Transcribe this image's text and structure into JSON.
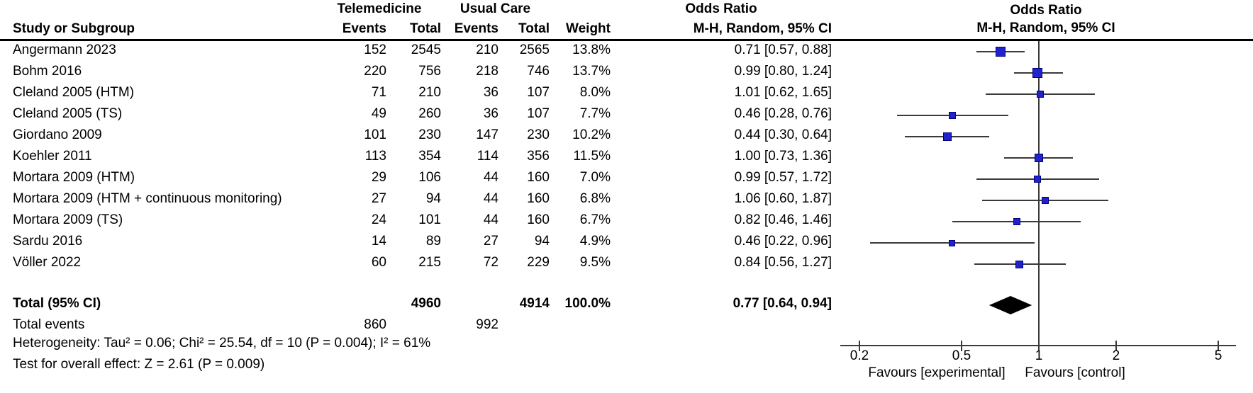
{
  "header": {
    "group1": "Telemedicine",
    "group2": "Usual Care",
    "or_label": "Odds Ratio",
    "method_label": "M-H, Random, 95% CI",
    "study": "Study or Subgroup",
    "events": "Events",
    "total": "Total",
    "weight": "Weight",
    "plot_or_label": "Odds Ratio",
    "plot_method_label": "M-H, Random, 95% CI"
  },
  "studies": [
    {
      "name": "Angermann 2023",
      "tele_events": "152",
      "tele_total": "2545",
      "uc_events": "210",
      "uc_total": "2565",
      "weight": "13.8%",
      "or_ci": "0.71 [0.57, 0.88]",
      "or": 0.71,
      "lo": 0.57,
      "hi": 0.88,
      "weight_value": 13.8
    },
    {
      "name": "Bohm 2016",
      "tele_events": "220",
      "tele_total": "756",
      "uc_events": "218",
      "uc_total": "746",
      "weight": "13.7%",
      "or_ci": "0.99 [0.80, 1.24]",
      "or": 0.99,
      "lo": 0.8,
      "hi": 1.24,
      "weight_value": 13.7
    },
    {
      "name": "Cleland 2005 (HTM)",
      "tele_events": "71",
      "tele_total": "210",
      "uc_events": "36",
      "uc_total": "107",
      "weight": "8.0%",
      "or_ci": "1.01 [0.62, 1.65]",
      "or": 1.01,
      "lo": 0.62,
      "hi": 1.65,
      "weight_value": 8.0
    },
    {
      "name": "Cleland 2005 (TS)",
      "tele_events": "49",
      "tele_total": "260",
      "uc_events": "36",
      "uc_total": "107",
      "weight": "7.7%",
      "or_ci": "0.46 [0.28, 0.76]",
      "or": 0.46,
      "lo": 0.28,
      "hi": 0.76,
      "weight_value": 7.7
    },
    {
      "name": "Giordano 2009",
      "tele_events": "101",
      "tele_total": "230",
      "uc_events": "147",
      "uc_total": "230",
      "weight": "10.2%",
      "or_ci": "0.44 [0.30, 0.64]",
      "or": 0.44,
      "lo": 0.3,
      "hi": 0.64,
      "weight_value": 10.2
    },
    {
      "name": "Koehler 2011",
      "tele_events": "113",
      "tele_total": "354",
      "uc_events": "114",
      "uc_total": "356",
      "weight": "11.5%",
      "or_ci": "1.00 [0.73, 1.36]",
      "or": 1.0,
      "lo": 0.73,
      "hi": 1.36,
      "weight_value": 11.5
    },
    {
      "name": "Mortara 2009 (HTM)",
      "tele_events": "29",
      "tele_total": "106",
      "uc_events": "44",
      "uc_total": "160",
      "weight": "7.0%",
      "or_ci": "0.99 [0.57, 1.72]",
      "or": 0.99,
      "lo": 0.57,
      "hi": 1.72,
      "weight_value": 7.0
    },
    {
      "name": "Mortara 2009 (HTM + continuous monitoring)",
      "tele_events": "27",
      "tele_total": "94",
      "uc_events": "44",
      "uc_total": "160",
      "weight": "6.8%",
      "or_ci": "1.06 [0.60, 1.87]",
      "or": 1.06,
      "lo": 0.6,
      "hi": 1.87,
      "weight_value": 6.8
    },
    {
      "name": "Mortara 2009 (TS)",
      "tele_events": "24",
      "tele_total": "101",
      "uc_events": "44",
      "uc_total": "160",
      "weight": "6.7%",
      "or_ci": "0.82 [0.46, 1.46]",
      "or": 0.82,
      "lo": 0.46,
      "hi": 1.46,
      "weight_value": 6.7
    },
    {
      "name": "Sardu 2016",
      "tele_events": "14",
      "tele_total": "89",
      "uc_events": "27",
      "uc_total": "94",
      "weight": "4.9%",
      "or_ci": "0.46 [0.22, 0.96]",
      "or": 0.46,
      "lo": 0.22,
      "hi": 0.96,
      "weight_value": 4.9
    },
    {
      "name": "Völler 2022",
      "tele_events": "60",
      "tele_total": "215",
      "uc_events": "72",
      "uc_total": "229",
      "weight": "9.5%",
      "or_ci": "0.84 [0.56, 1.27]",
      "or": 0.84,
      "lo": 0.56,
      "hi": 1.27,
      "weight_value": 9.5
    }
  ],
  "totals": {
    "label": "Total (95% CI)",
    "tele_total": "4960",
    "uc_total": "4914",
    "weight": "100.0%",
    "or_ci": "0.77 [0.64, 0.94]",
    "or": 0.77,
    "lo": 0.64,
    "hi": 0.94,
    "events_label": "Total events",
    "tele_events": "860",
    "uc_events": "992"
  },
  "footer": {
    "heterogeneity": "Heterogeneity: Tau² = 0.06; Chi² = 25.54, df = 10 (P = 0.004); I² = 61%",
    "overall_effect": "Test for overall effect: Z = 2.61 (P = 0.009)"
  },
  "axis": {
    "scale": "log",
    "ticks": [
      0.2,
      0.5,
      1,
      2,
      5
    ],
    "tick_labels": [
      "0.2",
      "0.5",
      "1",
      "2",
      "5"
    ],
    "favours_left": "Favours [experimental]",
    "favours_right": "Favours [control]"
  },
  "colors": {
    "square": "#2222CC",
    "square_border": "#000080",
    "diamond": "#000000",
    "line": "#3A3A3A",
    "text": "#000000"
  },
  "chart_data": {
    "type": "forest",
    "effect_measure": "Odds Ratio, M-H, Random, 95% CI",
    "x_axis": {
      "scale": "log",
      "ticks": [
        0.2,
        0.5,
        1,
        2,
        5
      ],
      "left_label": "Favours [experimental]",
      "right_label": "Favours [control]"
    },
    "categories": [
      "Angermann 2023",
      "Bohm 2016",
      "Cleland 2005 (HTM)",
      "Cleland 2005 (TS)",
      "Giordano 2009",
      "Koehler 2011",
      "Mortara 2009 (HTM)",
      "Mortara 2009 (HTM + continuous monitoring)",
      "Mortara 2009 (TS)",
      "Sardu 2016",
      "Völler 2022"
    ],
    "series": [
      {
        "name": "odds_ratio",
        "values": [
          0.71,
          0.99,
          1.01,
          0.46,
          0.44,
          1.0,
          0.99,
          1.06,
          0.82,
          0.46,
          0.84
        ]
      },
      {
        "name": "ci_lower",
        "values": [
          0.57,
          0.8,
          0.62,
          0.28,
          0.3,
          0.73,
          0.57,
          0.6,
          0.46,
          0.22,
          0.56
        ]
      },
      {
        "name": "ci_upper",
        "values": [
          0.88,
          1.24,
          1.65,
          0.76,
          0.64,
          1.36,
          1.72,
          1.87,
          1.46,
          0.96,
          1.27
        ]
      },
      {
        "name": "weight_pct",
        "values": [
          13.8,
          13.7,
          8.0,
          7.7,
          10.2,
          11.5,
          7.0,
          6.8,
          6.7,
          4.9,
          9.5
        ]
      },
      {
        "name": "telemedicine_events",
        "values": [
          152,
          220,
          71,
          49,
          101,
          113,
          29,
          27,
          24,
          14,
          60
        ]
      },
      {
        "name": "telemedicine_total",
        "values": [
          2545,
          756,
          210,
          260,
          230,
          354,
          106,
          94,
          101,
          89,
          215
        ]
      },
      {
        "name": "usual_care_events",
        "values": [
          210,
          218,
          36,
          36,
          147,
          114,
          44,
          44,
          44,
          27,
          72
        ]
      },
      {
        "name": "usual_care_total",
        "values": [
          2565,
          746,
          107,
          107,
          230,
          356,
          160,
          160,
          160,
          94,
          229
        ]
      }
    ],
    "total": {
      "label": "Total (95% CI)",
      "or": 0.77,
      "ci": [
        0.64,
        0.94
      ],
      "weight_pct": 100.0,
      "telemedicine_total": 4960,
      "usual_care_total": 4914,
      "telemedicine_events": 860,
      "usual_care_events": 992
    },
    "heterogeneity": "Tau² = 0.06; Chi² = 25.54, df = 10 (P = 0.004); I² = 61%",
    "overall_effect_test": "Z = 2.61 (P = 0.009)"
  }
}
